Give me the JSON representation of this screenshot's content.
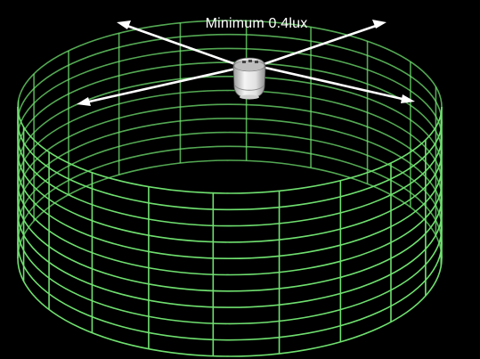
{
  "diagram": {
    "caption": "Minimum 0.4lux",
    "grid_color": "#6fe06f",
    "background": "#000000",
    "sensor_body_color": "#e9e9e9",
    "sensor_icon": "motion-sensor-icon",
    "arrow_color": "#ffffff",
    "vertical_divisions": 20,
    "horizontal_rings": 10
  }
}
